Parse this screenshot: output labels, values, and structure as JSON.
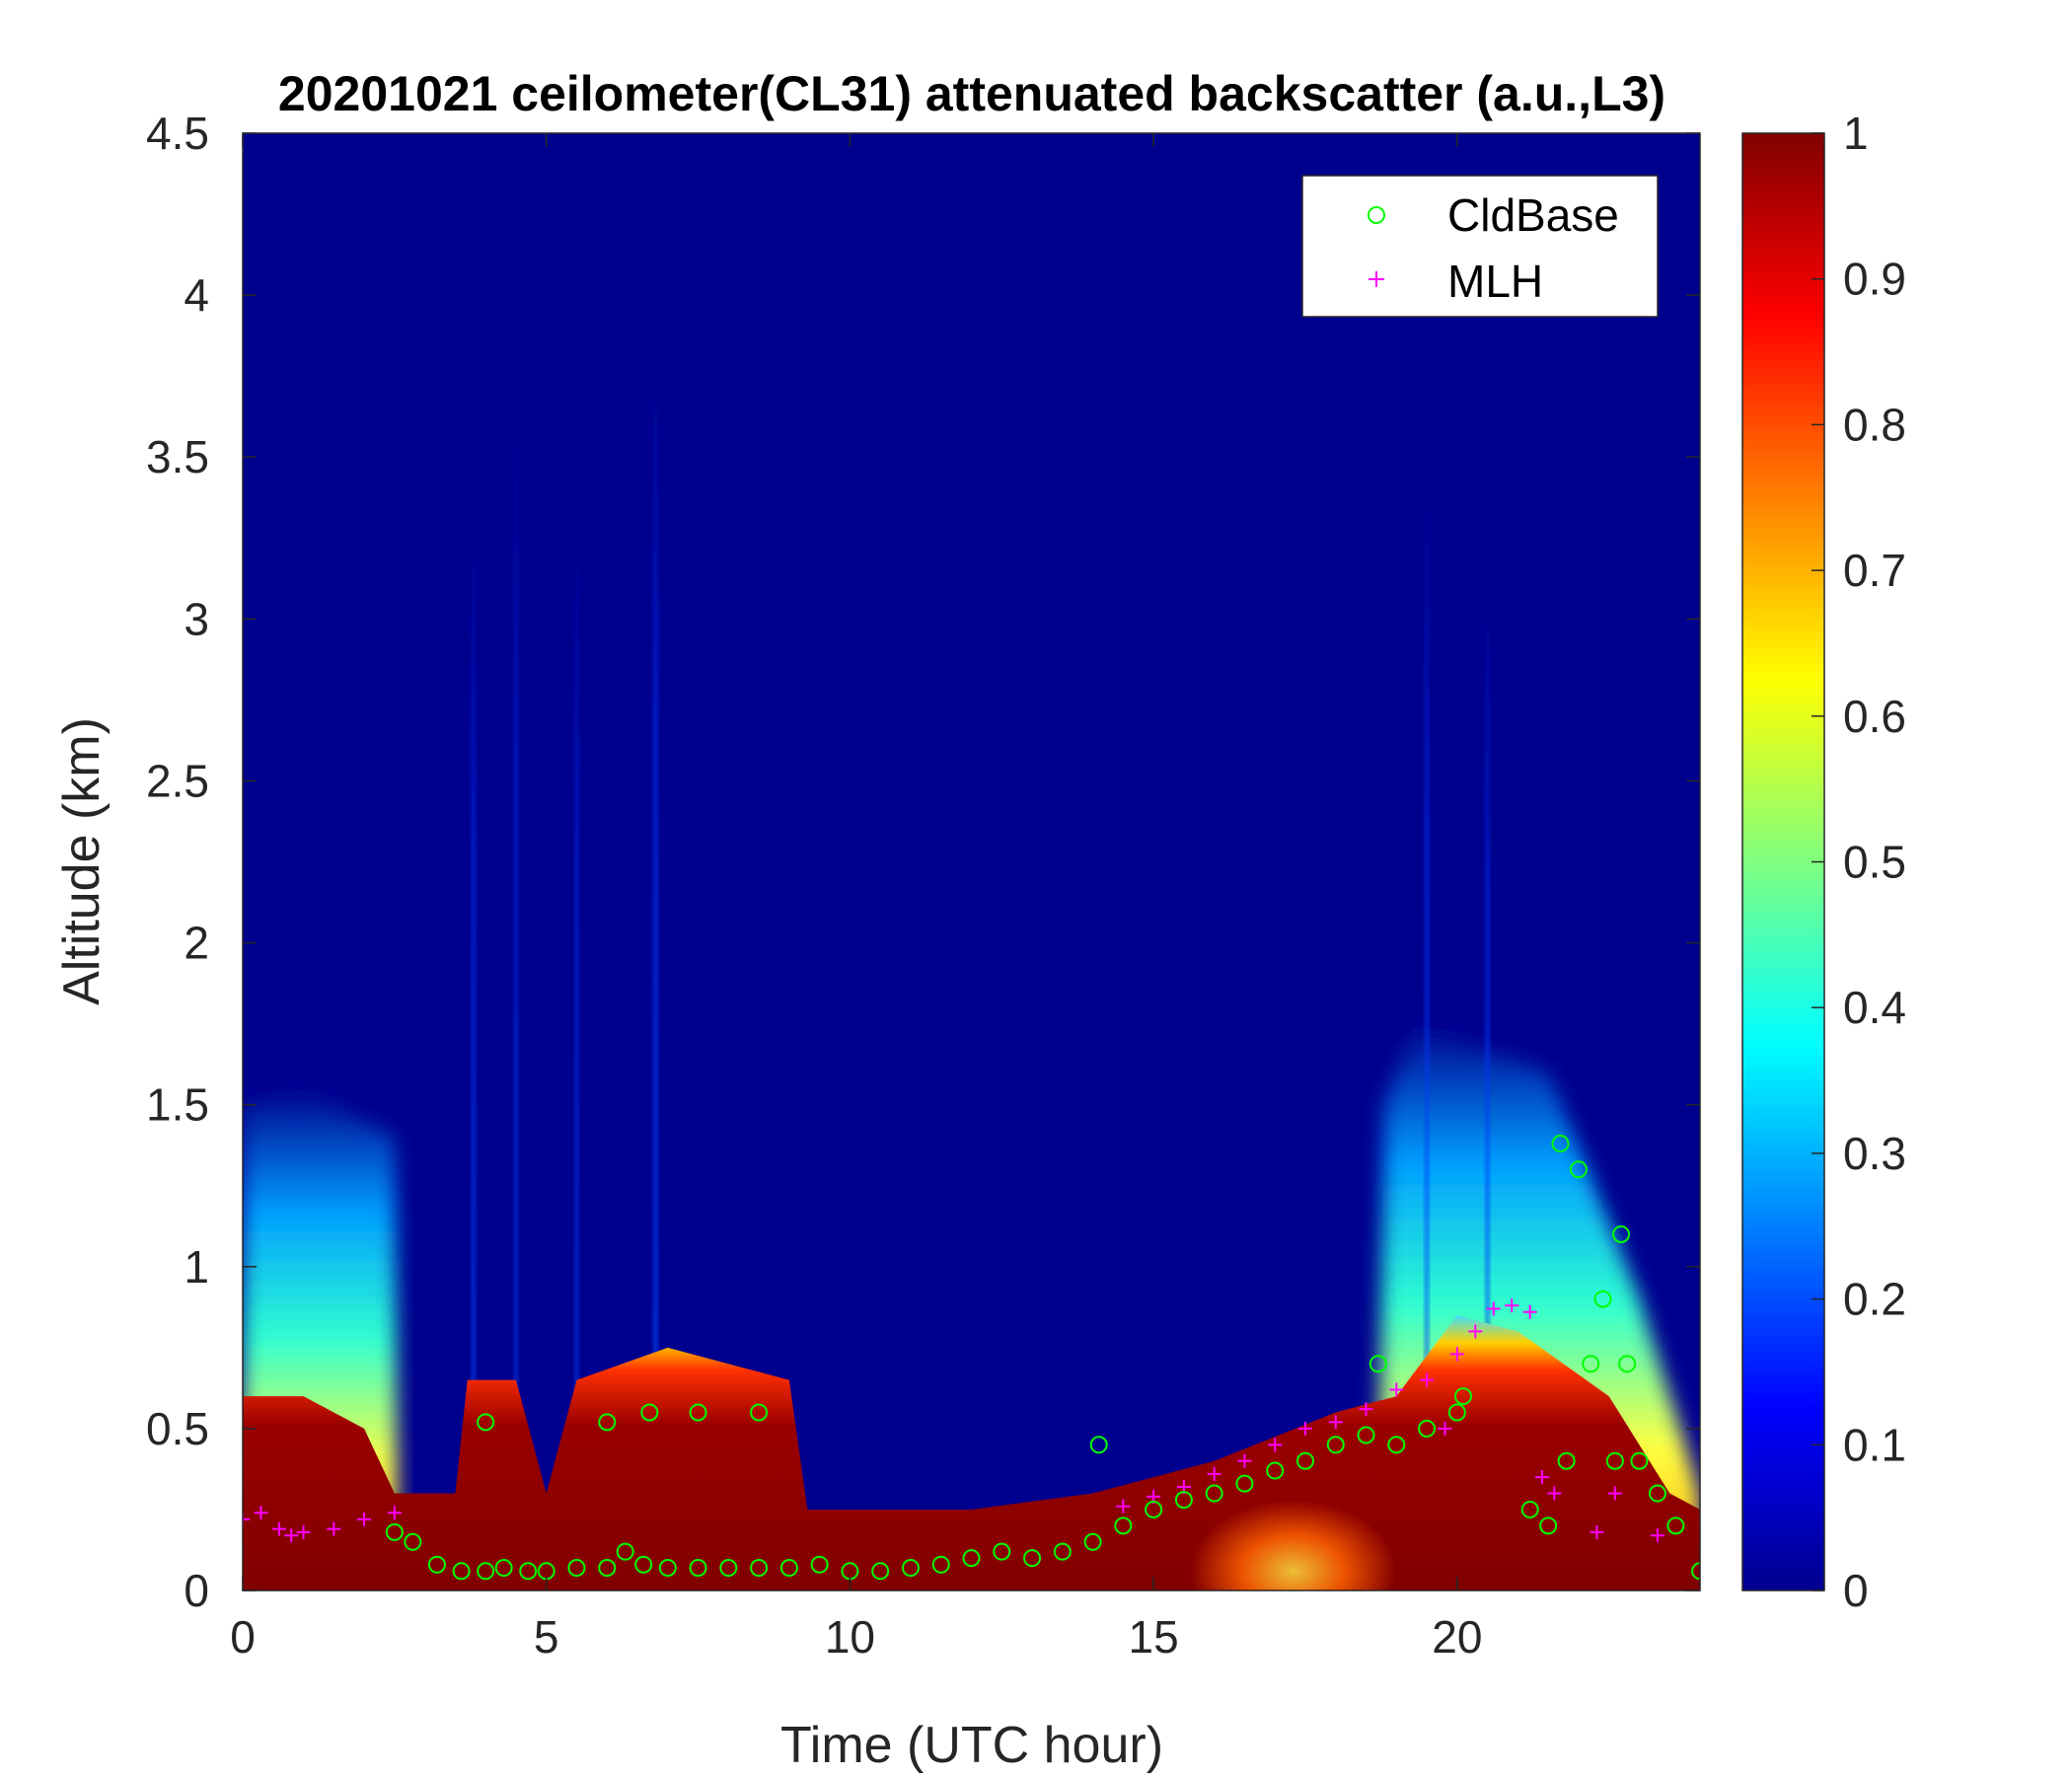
{
  "chart_data": {
    "type": "heatmap",
    "title": "20201021 ceilometer(CL31) attenuated backscatter (a.u.,L3)",
    "xlabel": "Time (UTC hour)",
    "ylabel": "Altitude (km)",
    "xlim": [
      0,
      24
    ],
    "ylim": [
      0,
      4.5
    ],
    "xticks": [
      "0",
      "5",
      "10",
      "15",
      "20"
    ],
    "yticks": [
      "0",
      "0.5",
      "1",
      "1.5",
      "2",
      "2.5",
      "3",
      "3.5",
      "4",
      "4.5"
    ],
    "colorbar": {
      "colormap": "jet",
      "range": [
        0,
        1
      ],
      "ticks": [
        "0",
        "0.1",
        "0.2",
        "0.3",
        "0.4",
        "0.5",
        "0.6",
        "0.7",
        "0.8",
        "0.9",
        "1"
      ]
    },
    "legend": {
      "position": "top-right",
      "entries": [
        {
          "label": "CldBase",
          "marker": "circle",
          "color": "#00ff00"
        },
        {
          "label": "MLH",
          "marker": "plus",
          "color": "#ff00ff"
        }
      ]
    },
    "backscatter_layer_top_km": [
      [
        0,
        0.6
      ],
      [
        1,
        0.6
      ],
      [
        2,
        0.5
      ],
      [
        2.5,
        0.3
      ],
      [
        3.5,
        0.3
      ],
      [
        3.7,
        0.65
      ],
      [
        4.5,
        0.65
      ],
      [
        5,
        0.3
      ],
      [
        5.5,
        0.65
      ],
      [
        7,
        0.75
      ],
      [
        9,
        0.65
      ],
      [
        9.3,
        0.25
      ],
      [
        12,
        0.25
      ],
      [
        14,
        0.3
      ],
      [
        16,
        0.4
      ],
      [
        18,
        0.55
      ],
      [
        19,
        0.6
      ],
      [
        20,
        0.85
      ],
      [
        21,
        0.8
      ],
      [
        22.5,
        0.6
      ],
      [
        23.5,
        0.3
      ],
      [
        24,
        0.25
      ]
    ],
    "aerosol_haze_top_km": [
      [
        0,
        1.5
      ],
      [
        1,
        1.55
      ],
      [
        2.5,
        1.4
      ],
      [
        18.8,
        1.5
      ],
      [
        19.3,
        1.75
      ],
      [
        21.5,
        1.6
      ],
      [
        23,
        0.9
      ],
      [
        24,
        0.3
      ]
    ],
    "series": [
      {
        "name": "CldBase",
        "x": [
          2.5,
          2.8,
          3.2,
          3.6,
          4.0,
          4.3,
          4.7,
          5.0,
          5.5,
          6.0,
          6.3,
          6.6,
          7.0,
          7.5,
          8.0,
          8.5,
          9.0,
          9.5,
          10.0,
          10.5,
          11.0,
          11.5,
          12.0,
          12.5,
          13.0,
          13.5,
          14.0,
          14.1,
          14.5,
          15.0,
          15.5,
          16.0,
          16.5,
          17.0,
          17.5,
          18.0,
          18.5,
          18.7,
          19.0,
          19.5,
          20.0,
          20.1,
          21.2,
          21.5,
          21.7,
          21.8,
          22.0,
          22.2,
          22.4,
          22.6,
          22.7,
          22.8,
          23.0,
          23.3,
          23.6,
          24.0,
          4.0,
          6.0,
          6.7,
          7.5,
          8.5
        ],
        "y": [
          0.18,
          0.15,
          0.08,
          0.06,
          0.06,
          0.07,
          0.06,
          0.06,
          0.07,
          0.07,
          0.12,
          0.08,
          0.07,
          0.07,
          0.07,
          0.07,
          0.07,
          0.08,
          0.06,
          0.06,
          0.07,
          0.08,
          0.1,
          0.12,
          0.1,
          0.12,
          0.15,
          0.45,
          0.2,
          0.25,
          0.28,
          0.3,
          0.33,
          0.37,
          0.4,
          0.45,
          0.48,
          0.7,
          0.45,
          0.5,
          0.55,
          0.6,
          0.25,
          0.2,
          1.38,
          0.4,
          1.3,
          0.7,
          0.9,
          0.4,
          1.1,
          0.7,
          0.4,
          0.3,
          0.2,
          0.06,
          0.52,
          0.52,
          0.55,
          0.55,
          0.55
        ]
      },
      {
        "name": "MLH",
        "x": [
          0,
          0.3,
          0.6,
          0.8,
          1.0,
          1.5,
          2.0,
          2.5,
          14.5,
          15.0,
          15.5,
          16.0,
          16.5,
          17.0,
          17.5,
          18.0,
          18.5,
          19.0,
          19.5,
          19.8,
          20.0,
          20.3,
          20.6,
          20.9,
          21.2,
          21.4,
          21.6,
          22.3,
          22.6,
          23.3
        ],
        "y": [
          0.22,
          0.24,
          0.19,
          0.17,
          0.18,
          0.19,
          0.22,
          0.24,
          0.26,
          0.29,
          0.32,
          0.36,
          0.4,
          0.45,
          0.5,
          0.52,
          0.56,
          0.62,
          0.65,
          0.5,
          0.73,
          0.8,
          0.87,
          0.88,
          0.86,
          0.35,
          0.3,
          0.18,
          0.3,
          0.17
        ]
      }
    ]
  }
}
